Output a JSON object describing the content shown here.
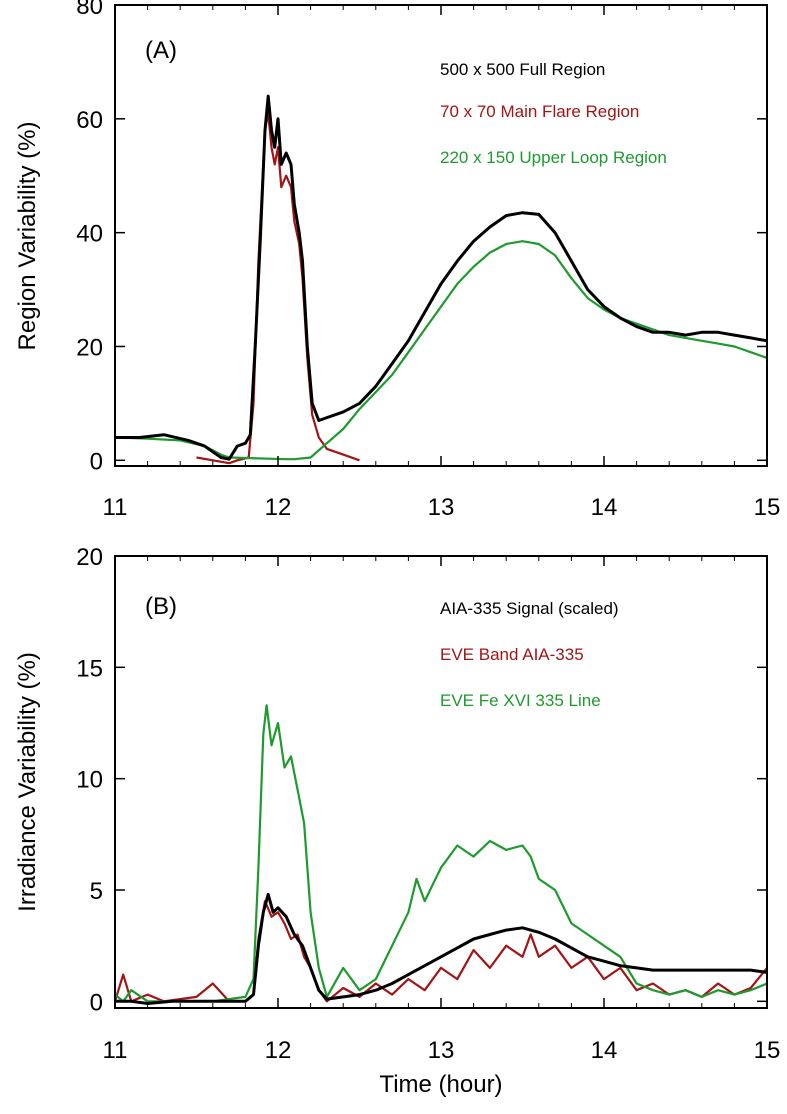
{
  "chart_data": [
    {
      "type": "line",
      "panel_label": "(A)",
      "title": "",
      "xlabel": "",
      "ylabel": "Region Variability (%)",
      "xlim": [
        11,
        15
      ],
      "ylim": [
        -1,
        80
      ],
      "xticks": [
        11,
        12,
        13,
        14,
        15
      ],
      "yticks": [
        0,
        20,
        40,
        60,
        80
      ],
      "grid": false,
      "legend_position": "top-right",
      "series": [
        {
          "name": "500 x 500 Full Region",
          "color": "#000000",
          "points": [
            [
              11.0,
              4.0
            ],
            [
              11.15,
              4.0
            ],
            [
              11.3,
              4.5
            ],
            [
              11.45,
              3.5
            ],
            [
              11.55,
              2.5
            ],
            [
              11.6,
              1.5
            ],
            [
              11.65,
              0.5
            ],
            [
              11.7,
              0.2
            ],
            [
              11.75,
              2.5
            ],
            [
              11.8,
              3.0
            ],
            [
              11.83,
              4.5
            ],
            [
              11.86,
              20.0
            ],
            [
              11.89,
              38.0
            ],
            [
              11.92,
              58.0
            ],
            [
              11.94,
              64.0
            ],
            [
              11.96,
              58.0
            ],
            [
              11.98,
              55.0
            ],
            [
              12.0,
              60.0
            ],
            [
              12.02,
              52.0
            ],
            [
              12.05,
              54.0
            ],
            [
              12.08,
              52.0
            ],
            [
              12.1,
              45.0
            ],
            [
              12.13,
              40.0
            ],
            [
              12.15,
              35.0
            ],
            [
              12.18,
              20.0
            ],
            [
              12.21,
              10.0
            ],
            [
              12.25,
              7.0
            ],
            [
              12.3,
              7.5
            ],
            [
              12.4,
              8.5
            ],
            [
              12.5,
              10.0
            ],
            [
              12.6,
              13.0
            ],
            [
              12.7,
              17.0
            ],
            [
              12.8,
              21.0
            ],
            [
              12.9,
              26.0
            ],
            [
              13.0,
              31.0
            ],
            [
              13.1,
              35.0
            ],
            [
              13.2,
              38.5
            ],
            [
              13.3,
              41.0
            ],
            [
              13.4,
              43.0
            ],
            [
              13.5,
              43.5
            ],
            [
              13.6,
              43.2
            ],
            [
              13.7,
              40.0
            ],
            [
              13.8,
              35.0
            ],
            [
              13.9,
              30.0
            ],
            [
              14.0,
              27.0
            ],
            [
              14.1,
              25.0
            ],
            [
              14.2,
              23.5
            ],
            [
              14.3,
              22.5
            ],
            [
              14.4,
              22.5
            ],
            [
              14.5,
              22.0
            ],
            [
              14.6,
              22.5
            ],
            [
              14.7,
              22.5
            ],
            [
              14.8,
              22.0
            ],
            [
              14.9,
              21.5
            ],
            [
              15.0,
              21.0
            ]
          ]
        },
        {
          "name": "70 x 70 Main Flare Region",
          "color": "#a31515",
          "points": [
            [
              11.5,
              0.5
            ],
            [
              11.6,
              0.0
            ],
            [
              11.7,
              -0.5
            ],
            [
              11.75,
              0.0
            ],
            [
              11.82,
              0.5
            ],
            [
              11.85,
              10.0
            ],
            [
              11.88,
              35.0
            ],
            [
              11.92,
              58.0
            ],
            [
              11.94,
              61.0
            ],
            [
              11.96,
              55.0
            ],
            [
              11.98,
              52.0
            ],
            [
              12.0,
              55.0
            ],
            [
              12.02,
              48.0
            ],
            [
              12.05,
              50.0
            ],
            [
              12.08,
              48.0
            ],
            [
              12.1,
              42.0
            ],
            [
              12.13,
              38.0
            ],
            [
              12.15,
              32.0
            ],
            [
              12.18,
              18.0
            ],
            [
              12.21,
              8.0
            ],
            [
              12.25,
              4.0
            ],
            [
              12.3,
              2.0
            ],
            [
              12.4,
              1.0
            ],
            [
              12.5,
              0.0
            ]
          ]
        },
        {
          "name": "220 x 150 Upper Loop Region",
          "color": "#1e9a2e",
          "points": [
            [
              11.0,
              4.0
            ],
            [
              11.2,
              3.8
            ],
            [
              11.4,
              3.5
            ],
            [
              11.55,
              2.5
            ],
            [
              11.65,
              1.0
            ],
            [
              11.7,
              0.5
            ],
            [
              12.05,
              0.2
            ],
            [
              12.1,
              0.2
            ],
            [
              12.2,
              0.5
            ],
            [
              12.3,
              3.0
            ],
            [
              12.4,
              5.5
            ],
            [
              12.5,
              9.0
            ],
            [
              12.6,
              12.0
            ],
            [
              12.7,
              15.0
            ],
            [
              12.8,
              19.0
            ],
            [
              12.9,
              23.0
            ],
            [
              13.0,
              27.0
            ],
            [
              13.1,
              31.0
            ],
            [
              13.2,
              34.0
            ],
            [
              13.3,
              36.5
            ],
            [
              13.4,
              38.0
            ],
            [
              13.5,
              38.5
            ],
            [
              13.6,
              38.0
            ],
            [
              13.7,
              36.0
            ],
            [
              13.8,
              32.0
            ],
            [
              13.9,
              28.5
            ],
            [
              14.0,
              26.5
            ],
            [
              14.1,
              25.0
            ],
            [
              14.2,
              24.0
            ],
            [
              14.3,
              23.0
            ],
            [
              14.4,
              22.0
            ],
            [
              14.5,
              21.5
            ],
            [
              14.6,
              21.0
            ],
            [
              14.7,
              20.5
            ],
            [
              14.8,
              20.0
            ],
            [
              14.9,
              19.0
            ],
            [
              15.0,
              18.0
            ]
          ]
        }
      ]
    },
    {
      "type": "line",
      "panel_label": "(B)",
      "title": "",
      "xlabel": "Time (hour)",
      "ylabel": "Irradiance Variability (%)",
      "xlim": [
        11,
        15
      ],
      "ylim": [
        -0.3,
        20
      ],
      "xticks": [
        11,
        12,
        13,
        14,
        15
      ],
      "yticks": [
        0,
        5,
        10,
        15,
        20
      ],
      "grid": false,
      "legend_position": "top-right",
      "series": [
        {
          "name": "AIA-335 Signal (scaled)",
          "color": "#000000",
          "points": [
            [
              11.0,
              0.0
            ],
            [
              11.1,
              0.0
            ],
            [
              11.2,
              -0.1
            ],
            [
              11.35,
              0.0
            ],
            [
              11.6,
              0.0
            ],
            [
              11.8,
              0.0
            ],
            [
              11.85,
              0.3
            ],
            [
              11.88,
              2.5
            ],
            [
              11.91,
              4.0
            ],
            [
              11.94,
              4.8
            ],
            [
              11.97,
              4.0
            ],
            [
              12.0,
              4.2
            ],
            [
              12.05,
              3.8
            ],
            [
              12.1,
              3.0
            ],
            [
              12.15,
              2.5
            ],
            [
              12.2,
              1.5
            ],
            [
              12.25,
              0.5
            ],
            [
              12.3,
              0.1
            ],
            [
              12.4,
              0.2
            ],
            [
              12.5,
              0.3
            ],
            [
              12.6,
              0.5
            ],
            [
              12.7,
              0.8
            ],
            [
              12.8,
              1.2
            ],
            [
              12.9,
              1.6
            ],
            [
              13.0,
              2.0
            ],
            [
              13.1,
              2.4
            ],
            [
              13.2,
              2.8
            ],
            [
              13.3,
              3.0
            ],
            [
              13.4,
              3.2
            ],
            [
              13.5,
              3.3
            ],
            [
              13.6,
              3.1
            ],
            [
              13.7,
              2.8
            ],
            [
              13.8,
              2.4
            ],
            [
              13.9,
              2.0
            ],
            [
              14.0,
              1.8
            ],
            [
              14.1,
              1.6
            ],
            [
              14.2,
              1.5
            ],
            [
              14.3,
              1.4
            ],
            [
              14.4,
              1.4
            ],
            [
              14.5,
              1.4
            ],
            [
              14.6,
              1.4
            ],
            [
              14.7,
              1.4
            ],
            [
              14.8,
              1.4
            ],
            [
              14.9,
              1.4
            ],
            [
              15.0,
              1.3
            ]
          ]
        },
        {
          "name": "EVE Band AIA-335",
          "color": "#a31515",
          "points": [
            [
              11.0,
              0.0
            ],
            [
              11.05,
              1.2
            ],
            [
              11.1,
              0.0
            ],
            [
              11.2,
              0.3
            ],
            [
              11.3,
              0.0
            ],
            [
              11.5,
              0.2
            ],
            [
              11.6,
              0.8
            ],
            [
              11.7,
              0.0
            ],
            [
              11.8,
              0.0
            ],
            [
              11.85,
              0.3
            ],
            [
              11.88,
              2.8
            ],
            [
              11.92,
              4.5
            ],
            [
              11.96,
              3.8
            ],
            [
              12.0,
              4.0
            ],
            [
              12.04,
              3.5
            ],
            [
              12.08,
              2.8
            ],
            [
              12.12,
              3.0
            ],
            [
              12.16,
              2.0
            ],
            [
              12.2,
              1.5
            ],
            [
              12.25,
              0.5
            ],
            [
              12.3,
              0.0
            ],
            [
              12.4,
              0.6
            ],
            [
              12.5,
              0.2
            ],
            [
              12.6,
              0.8
            ],
            [
              12.7,
              0.3
            ],
            [
              12.8,
              1.0
            ],
            [
              12.9,
              0.5
            ],
            [
              13.0,
              1.5
            ],
            [
              13.1,
              1.0
            ],
            [
              13.2,
              2.3
            ],
            [
              13.3,
              1.5
            ],
            [
              13.4,
              2.5
            ],
            [
              13.5,
              2.0
            ],
            [
              13.55,
              3.0
            ],
            [
              13.6,
              2.0
            ],
            [
              13.7,
              2.5
            ],
            [
              13.8,
              1.5
            ],
            [
              13.9,
              2.0
            ],
            [
              14.0,
              1.0
            ],
            [
              14.1,
              1.5
            ],
            [
              14.2,
              0.5
            ],
            [
              14.3,
              0.8
            ],
            [
              14.4,
              0.3
            ],
            [
              14.5,
              0.5
            ],
            [
              14.6,
              0.2
            ],
            [
              14.7,
              0.8
            ],
            [
              14.8,
              0.3
            ],
            [
              14.9,
              0.6
            ],
            [
              15.0,
              1.5
            ]
          ]
        },
        {
          "name": "EVE Fe XVI 335 Line",
          "color": "#1e9a2e",
          "points": [
            [
              11.0,
              0.3
            ],
            [
              11.05,
              0.0
            ],
            [
              11.1,
              0.5
            ],
            [
              11.2,
              0.0
            ],
            [
              11.4,
              0.0
            ],
            [
              11.6,
              0.0
            ],
            [
              11.8,
              0.2
            ],
            [
              11.85,
              1.0
            ],
            [
              11.88,
              6.0
            ],
            [
              11.91,
              12.0
            ],
            [
              11.93,
              13.3
            ],
            [
              11.96,
              11.5
            ],
            [
              12.0,
              12.5
            ],
            [
              12.04,
              10.5
            ],
            [
              12.08,
              11.0
            ],
            [
              12.12,
              9.5
            ],
            [
              12.16,
              8.0
            ],
            [
              12.2,
              4.0
            ],
            [
              12.25,
              1.5
            ],
            [
              12.3,
              0.2
            ],
            [
              12.4,
              1.5
            ],
            [
              12.5,
              0.5
            ],
            [
              12.6,
              1.0
            ],
            [
              12.7,
              2.5
            ],
            [
              12.8,
              4.0
            ],
            [
              12.85,
              5.5
            ],
            [
              12.9,
              4.5
            ],
            [
              13.0,
              6.0
            ],
            [
              13.1,
              7.0
            ],
            [
              13.2,
              6.5
            ],
            [
              13.3,
              7.2
            ],
            [
              13.4,
              6.8
            ],
            [
              13.5,
              7.0
            ],
            [
              13.55,
              6.5
            ],
            [
              13.6,
              5.5
            ],
            [
              13.7,
              5.0
            ],
            [
              13.8,
              3.5
            ],
            [
              13.9,
              3.0
            ],
            [
              14.0,
              2.5
            ],
            [
              14.1,
              2.0
            ],
            [
              14.2,
              0.8
            ],
            [
              14.3,
              0.5
            ],
            [
              14.4,
              0.3
            ],
            [
              14.5,
              0.5
            ],
            [
              14.6,
              0.2
            ],
            [
              14.7,
              0.5
            ],
            [
              14.8,
              0.3
            ],
            [
              14.9,
              0.5
            ],
            [
              15.0,
              0.8
            ]
          ]
        }
      ]
    }
  ]
}
